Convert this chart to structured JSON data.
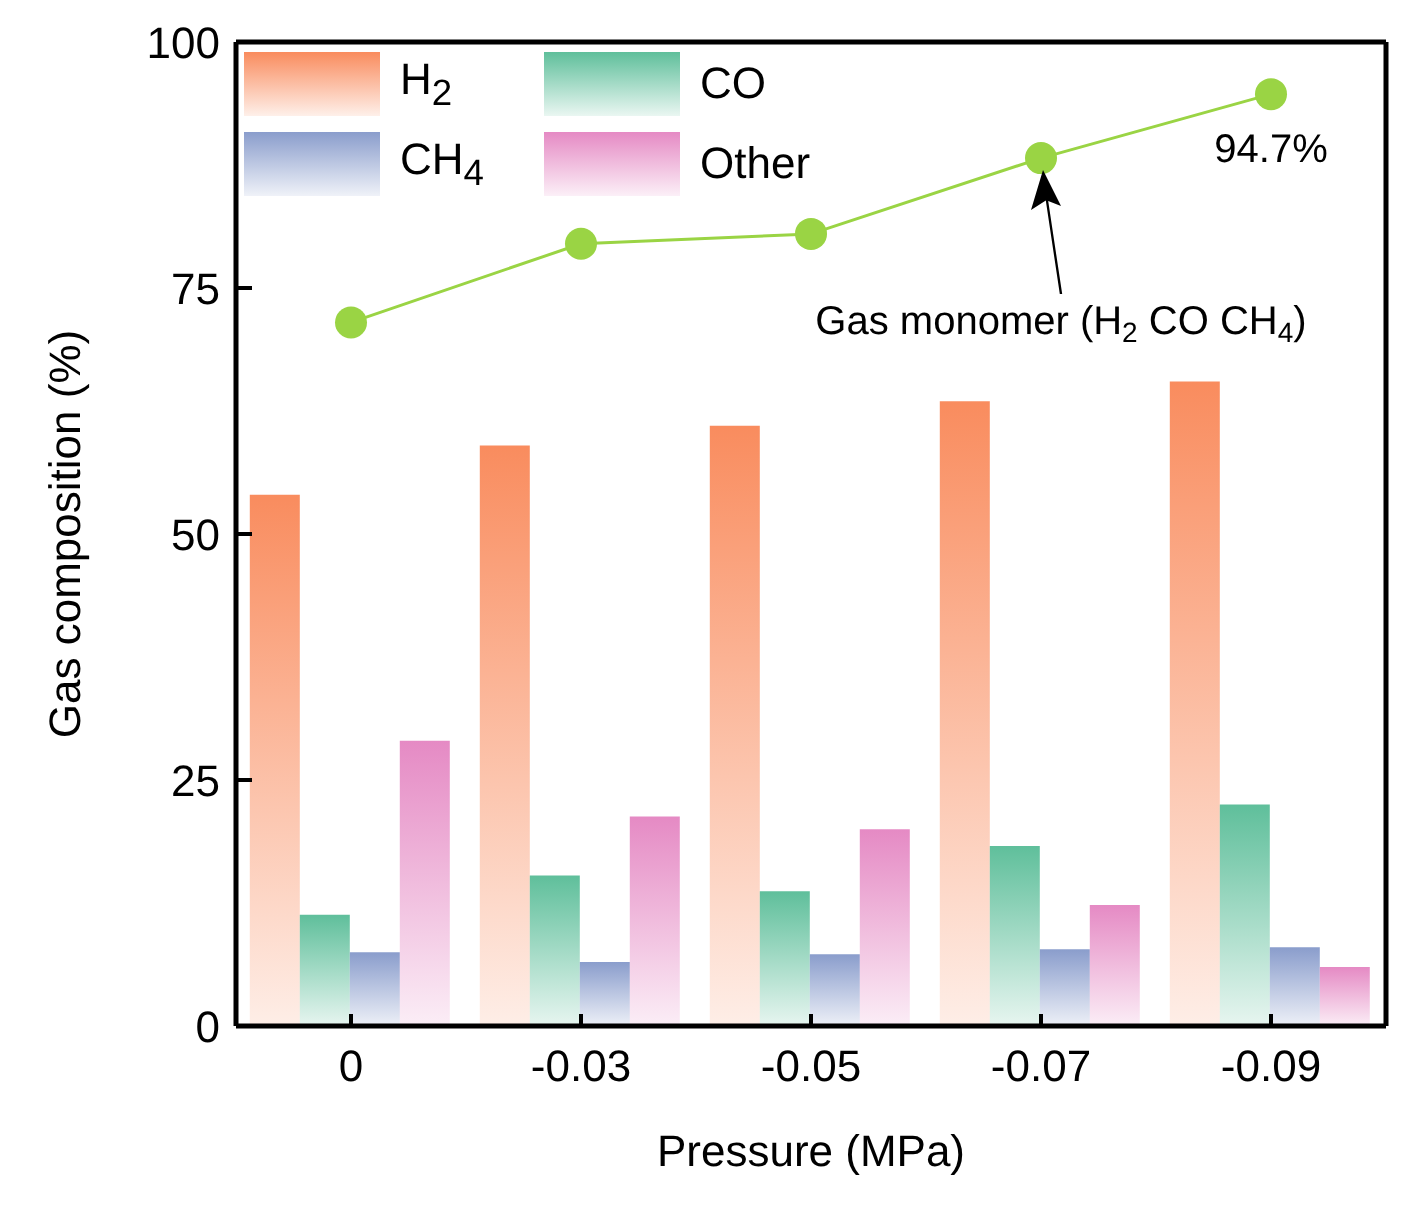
{
  "chart_data": {
    "type": "bar",
    "xlabel": "Pressure (MPa)",
    "ylabel": "Gas composition (%)",
    "categories": [
      "0",
      "-0.03",
      "-0.05",
      "-0.07",
      "-0.09"
    ],
    "series": [
      {
        "name": "H$_{2}$",
        "color": "#f98c5e",
        "values": [
          54,
          59,
          61,
          63.5,
          65.5
        ]
      },
      {
        "name": "CO",
        "color": "#5fbf9b",
        "values": [
          11.3,
          15.3,
          13.7,
          18.3,
          22.5
        ]
      },
      {
        "name": "CH$_{4}$",
        "color": "#8a9dcc",
        "values": [
          7.5,
          6.5,
          7.3,
          7.8,
          8
        ]
      },
      {
        "name": "Other",
        "color": "#e58ac4",
        "values": [
          29,
          21.3,
          20,
          12.3,
          6
        ]
      },
      {
        "type": "line",
        "color": "#9ad444",
        "values": [
          71.5,
          79.5,
          80.5,
          88.2,
          94.7
        ]
      }
    ],
    "ylim": [
      0,
      100
    ],
    "yticks": [
      0,
      25,
      50,
      75,
      100
    ],
    "legend": "top left",
    "marker": "circle",
    "grid": false,
    "annotations": [
      {
        "text": "94.7%",
        "x": "-0.09",
        "y": 94.7
      },
      "Gas monomer (H$_{2}$ CO CH$_{4}$)"
    ]
  }
}
